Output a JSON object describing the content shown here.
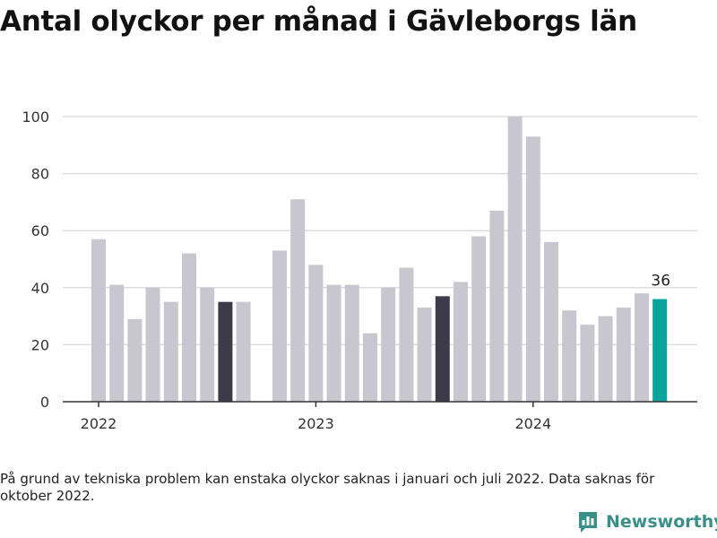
{
  "title": "Antal olyckor per månad i Gävleborgs län",
  "footnote": "På grund av tekniska problem kan enstaka olyckor saknas i januari och juli 2022. Data saknas för oktober 2022.",
  "brand": {
    "name": "Newsworthy",
    "icon": "newsworthy-logo-icon",
    "color": "#3a8f88"
  },
  "colors": {
    "default": "#c8c7d0",
    "highlight": "#3c3b4a",
    "current": "#0aa59a",
    "grid": "#dddddd",
    "axis": "#333333"
  },
  "chart_data": {
    "type": "bar",
    "title": "Antal olyckor per månad i Gävleborgs län",
    "xlabel": "",
    "ylabel": "",
    "ylim": [
      0,
      100
    ],
    "yticks": [
      0,
      20,
      40,
      60,
      80,
      100
    ],
    "grid": true,
    "xtick_labels": [
      {
        "label": "2022",
        "index": 0
      },
      {
        "label": "2023",
        "index": 12
      },
      {
        "label": "2024",
        "index": 24
      }
    ],
    "categories": [
      "2022-01",
      "2022-02",
      "2022-03",
      "2022-04",
      "2022-05",
      "2022-06",
      "2022-07",
      "2022-08",
      "2022-09",
      "2022-10",
      "2022-11",
      "2022-12",
      "2023-01",
      "2023-02",
      "2023-03",
      "2023-04",
      "2023-05",
      "2023-06",
      "2023-07",
      "2023-08",
      "2023-09",
      "2023-10",
      "2023-11",
      "2023-12",
      "2024-01",
      "2024-02",
      "2024-03",
      "2024-04",
      "2024-05",
      "2024-06",
      "2024-07",
      "2024-08"
    ],
    "values": [
      57,
      41,
      29,
      40,
      35,
      52,
      40,
      35,
      35,
      null,
      53,
      71,
      48,
      41,
      41,
      24,
      40,
      47,
      33,
      37,
      42,
      58,
      67,
      100,
      93,
      56,
      32,
      27,
      30,
      33,
      38,
      36
    ],
    "highlight_indices": [
      7,
      19
    ],
    "current_index": 31,
    "data_labels": [
      {
        "index": 31,
        "text": "36"
      }
    ]
  }
}
